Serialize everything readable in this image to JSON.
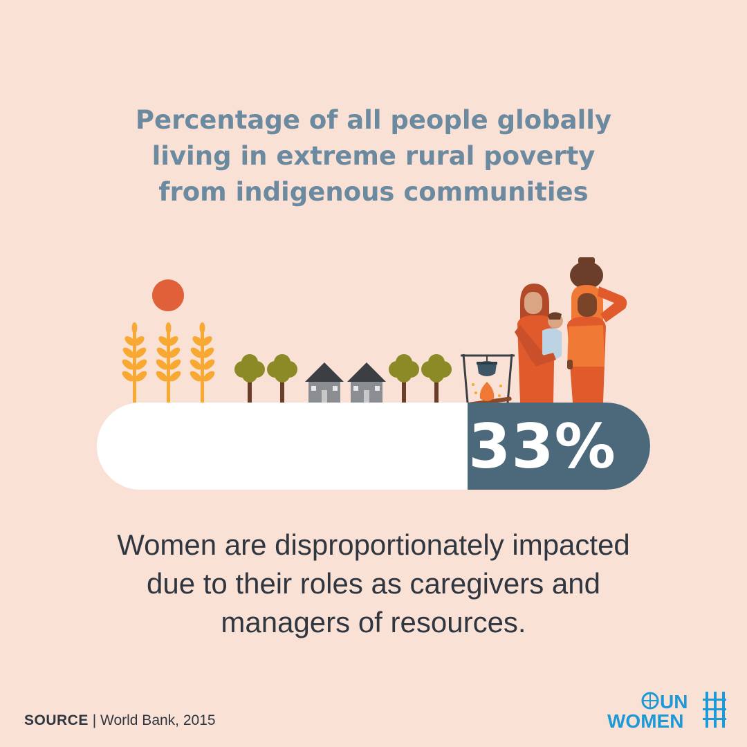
{
  "title": {
    "lines": [
      "Percentage of all people globally",
      "living in extreme rural poverty",
      "from indigenous communities"
    ]
  },
  "stat": {
    "value_text": "33%",
    "fraction": 0.33
  },
  "description": {
    "lines": [
      "Women are disproportionately impacted",
      "due to their roles as caregivers and",
      "managers of resources."
    ]
  },
  "source": {
    "label": "SOURCE",
    "separator": "|",
    "text": "World Bank, 2015"
  },
  "logo": {
    "line1": "UN",
    "line2": "WOMEN"
  },
  "colors": {
    "background": "#f9e1d6",
    "title": "#6b8aa0",
    "bar_fill": "#4c697b",
    "accent_orange": "#e05a2b",
    "brand_blue": "#1d9ad6"
  },
  "icons": [
    "sun-icon",
    "wheat-icon",
    "tree-icon",
    "house-icon",
    "cooking-pot-icon",
    "fire-icon",
    "woman-with-baby-icon",
    "woman-carrying-pot-icon",
    "un-emblem-icon"
  ]
}
